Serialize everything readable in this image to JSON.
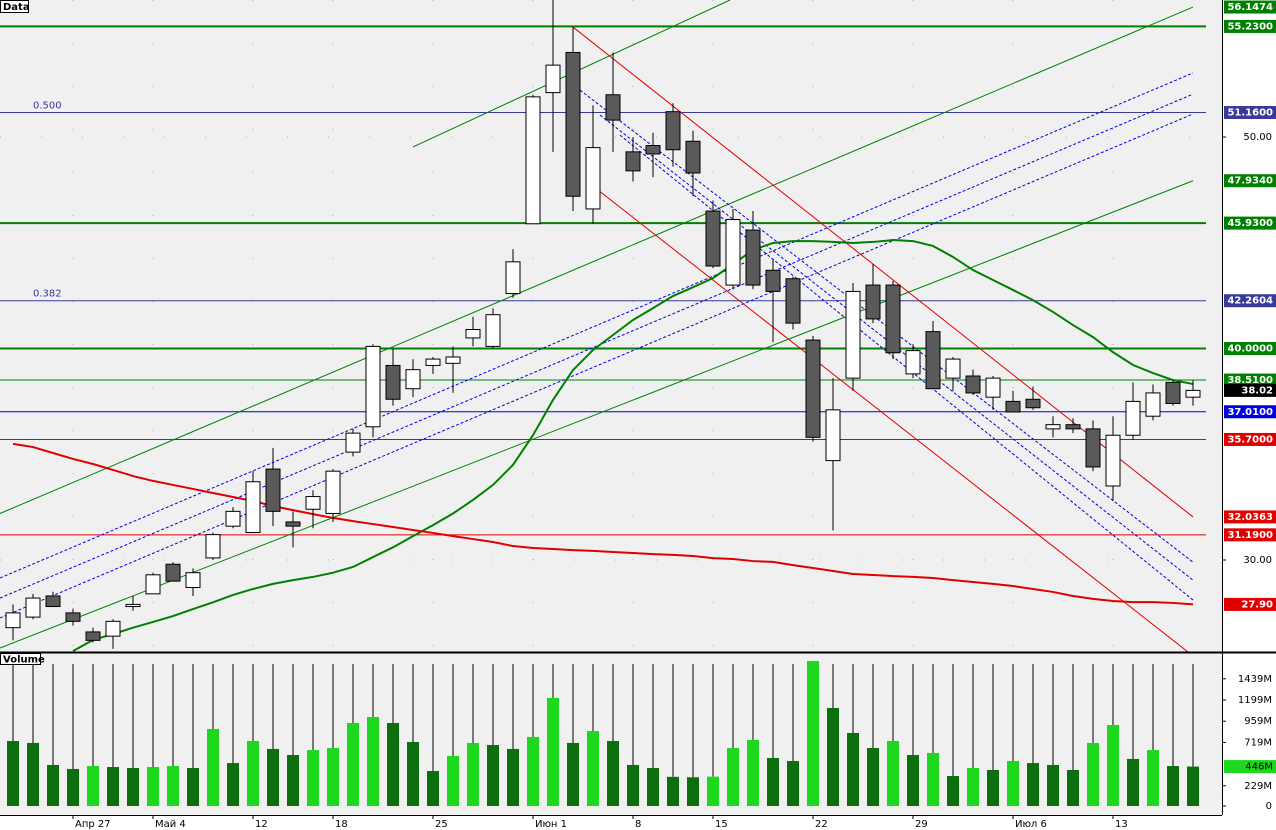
{
  "chart_data": [
    {
      "type": "candlestick",
      "title": "Data",
      "open": [
        26.8,
        27.3,
        28.3,
        27.5,
        26.6,
        26.4,
        27.8,
        28.4,
        29.8,
        28.7,
        30.1,
        31.6,
        31.3,
        34.3,
        31.8,
        32.4,
        32.2,
        35.1,
        36.3,
        39.2,
        38.1,
        39.2,
        39.3,
        40.5,
        40.1,
        42.6,
        45.9,
        52.1,
        54.0,
        46.6,
        52.0,
        49.3,
        49.6,
        51.2,
        49.8,
        46.5,
        43.0,
        45.6,
        43.7,
        43.3,
        40.4,
        34.7,
        38.6,
        43.0,
        43.0,
        38.8,
        40.8,
        38.6,
        38.7,
        37.7,
        37.5,
        37.6,
        36.2,
        36.4,
        36.2,
        33.5,
        35.9,
        36.8,
        38.4,
        37.7
      ],
      "high": [
        27.9,
        28.4,
        28.5,
        27.7,
        26.8,
        27.2,
        28.3,
        29.4,
        29.9,
        29.6,
        31.3,
        32.5,
        34.2,
        35.3,
        32.3,
        33.3,
        34.3,
        36.2,
        40.2,
        40.0,
        39.5,
        39.6,
        40.1,
        41.5,
        41.9,
        44.7,
        52.0,
        56.5,
        55.2,
        51.5,
        54.0,
        50.0,
        50.2,
        51.6,
        50.3,
        47.0,
        46.6,
        46.5,
        44.2,
        43.4,
        40.6,
        38.6,
        43.1,
        44.0,
        43.2,
        40.2,
        41.3,
        39.6,
        39.0,
        38.7,
        38.0,
        38.2,
        36.8,
        36.7,
        36.6,
        36.8,
        38.4,
        38.3,
        38.5,
        38.5
      ],
      "low": [
        26.2,
        27.2,
        27.8,
        26.9,
        26.1,
        25.8,
        27.6,
        28.4,
        29.0,
        28.3,
        30.0,
        31.5,
        31.3,
        31.6,
        30.6,
        31.5,
        31.8,
        34.9,
        35.8,
        37.3,
        37.7,
        38.8,
        37.9,
        40.1,
        40.0,
        42.4,
        45.9,
        49.3,
        46.5,
        45.9,
        49.3,
        47.9,
        48.1,
        48.6,
        47.2,
        43.8,
        42.8,
        42.8,
        40.3,
        40.9,
        35.6,
        31.4,
        38.0,
        41.2,
        39.5,
        38.6,
        38.1,
        38.0,
        37.8,
        37.1,
        37.0,
        37.1,
        35.8,
        36.0,
        34.2,
        32.8,
        35.7,
        36.6,
        37.3,
        37.3
      ],
      "close": [
        27.5,
        28.2,
        27.8,
        27.1,
        26.2,
        27.1,
        27.9,
        29.3,
        29.0,
        29.4,
        31.2,
        32.3,
        33.7,
        32.3,
        31.6,
        33.0,
        34.2,
        36.0,
        40.1,
        37.6,
        39.0,
        39.5,
        39.6,
        40.9,
        41.6,
        44.1,
        51.9,
        53.4,
        47.2,
        49.5,
        50.8,
        48.4,
        49.2,
        49.4,
        48.3,
        43.9,
        46.1,
        43.0,
        42.7,
        41.2,
        35.8,
        37.1,
        42.7,
        41.4,
        39.8,
        39.9,
        38.1,
        39.5,
        37.9,
        38.6,
        37.0,
        37.2,
        36.4,
        36.2,
        34.4,
        35.9,
        37.5,
        37.9,
        37.4,
        38.02
      ],
      "last_label": "38.02",
      "up_color": "#ffffff",
      "down_color": "#5a5a5a",
      "ylim": [
        25.65,
        56.48
      ],
      "yticks": [
        {
          "value": 50,
          "label": "50.00"
        },
        {
          "value": 30,
          "label": "30.00"
        }
      ],
      "grid": true,
      "x_labels": [
        {
          "index": 3,
          "label": "Апр 27"
        },
        {
          "index": 7,
          "label": "Май 4"
        },
        {
          "index": 12,
          "label": "12"
        },
        {
          "index": 16,
          "label": "18"
        },
        {
          "index": 21,
          "label": "25"
        },
        {
          "index": 26,
          "label": "Июн 1"
        },
        {
          "index": 31,
          "label": "8"
        },
        {
          "index": 35,
          "label": "15"
        },
        {
          "index": 40,
          "label": "22"
        },
        {
          "index": 45,
          "label": "29"
        },
        {
          "index": 50,
          "label": "Июл 6"
        },
        {
          "index": 55,
          "label": "13"
        }
      ],
      "levels": [
        {
          "value": 55.23,
          "label": "55.2300",
          "color": "#008000",
          "style": "thick"
        },
        {
          "value": 51.16,
          "label": "51.1600",
          "color": "#3a3a9a",
          "style": "thin",
          "fib": "0.500"
        },
        {
          "value": 45.93,
          "label": "45.9300",
          "color": "#008000",
          "style": "thick"
        },
        {
          "value": 42.2604,
          "label": "42.2604",
          "color": "#3a3a9a",
          "style": "thin",
          "fib": "0.382"
        },
        {
          "value": 40.0,
          "label": "40.0000",
          "color": "#008000",
          "style": "thick"
        },
        {
          "value": 38.51,
          "label": "38.5100",
          "color": "#008000",
          "style": "thin"
        },
        {
          "value": 37.01,
          "label": "37.0100",
          "color": "#0000e0",
          "style": "thin"
        },
        {
          "value": 35.7,
          "label": "35.7000",
          "color": "#e00000",
          "style": "thin"
        },
        {
          "value": 31.19,
          "label": "31.1900",
          "color": "#e00000",
          "style": "thin"
        }
      ],
      "lines": [
        {
          "color": "#008000",
          "style": "solid",
          "points": [
            [
              20,
              49.53
            ],
            [
              35.85,
              56.48
            ]
          ]
        },
        {
          "color": "#008000",
          "style": "solid",
          "points": [
            [
              -0.65,
              32.2
            ],
            [
              59,
              56.1474
            ]
          ],
          "label": "56.1474"
        },
        {
          "color": "#008000",
          "style": "solid",
          "points": [
            [
              -0.65,
              25.84
            ],
            [
              59,
              47.934
            ]
          ],
          "label": "47.9340"
        },
        {
          "color": "#0000e0",
          "style": "dashed",
          "points": [
            [
              -0.65,
              29.15
            ],
            [
              59,
              53.03
            ]
          ]
        },
        {
          "color": "#0000e0",
          "style": "dashed",
          "points": [
            [
              -0.65,
              28.2
            ],
            [
              59,
              52.03
            ]
          ]
        },
        {
          "color": "#0000e0",
          "style": "dashed",
          "points": [
            [
              -0.65,
              27.26
            ],
            [
              59,
              51.09
            ]
          ]
        },
        {
          "color": "#e00000",
          "style": "solid",
          "points": [
            [
              28,
              55.2
            ],
            [
              59,
              32.0363
            ]
          ],
          "label": "32.0363"
        },
        {
          "color": "#e00000",
          "style": "solid",
          "points": [
            [
              29,
              47.68
            ],
            [
              58.75,
              25.65
            ]
          ]
        },
        {
          "color": "#0000e0",
          "style": "dashed",
          "points": [
            [
              28.35,
              52.22
            ],
            [
              59,
              29.9
            ]
          ]
        },
        {
          "color": "#0000e0",
          "style": "dashed",
          "points": [
            [
              29.35,
              51.04
            ],
            [
              59,
              29.05
            ]
          ]
        },
        {
          "color": "#0000e0",
          "style": "dashed",
          "points": [
            [
              30.35,
              50.09
            ],
            [
              59,
              28.11
            ]
          ]
        }
      ],
      "ma": [
        {
          "color": "#008000",
          "values": [
            null,
            null,
            null,
            25.7,
            26.22,
            26.5,
            26.8,
            27.07,
            27.35,
            27.68,
            28.0,
            28.35,
            28.63,
            28.87,
            29.05,
            29.2,
            29.4,
            29.67,
            30.14,
            30.6,
            31.13,
            31.65,
            32.2,
            32.84,
            33.55,
            34.5,
            35.9,
            37.57,
            38.98,
            39.93,
            40.64,
            41.35,
            41.91,
            42.48,
            42.9,
            43.33,
            43.99,
            44.66,
            44.99,
            45.08,
            45.08,
            45.04,
            44.99,
            45.04,
            45.13,
            45.08,
            44.85,
            44.33,
            43.71,
            43.24,
            42.77,
            42.29,
            41.73,
            41.11,
            40.54,
            39.83,
            39.22,
            38.84,
            38.51,
            38.32
          ]
        },
        {
          "color": "#e00000",
          "label": "27.90",
          "values": [
            35.49,
            35.34,
            35.06,
            34.78,
            34.54,
            34.26,
            33.97,
            33.74,
            33.55,
            33.36,
            33.17,
            32.98,
            32.79,
            32.55,
            32.36,
            32.17,
            31.99,
            31.84,
            31.7,
            31.56,
            31.42,
            31.28,
            31.13,
            30.99,
            30.85,
            30.66,
            30.57,
            30.52,
            30.47,
            30.43,
            30.38,
            30.33,
            30.28,
            30.24,
            30.19,
            30.09,
            30.05,
            29.95,
            29.91,
            29.76,
            29.62,
            29.48,
            29.34,
            29.29,
            29.24,
            29.2,
            29.15,
            29.05,
            28.96,
            28.87,
            28.77,
            28.63,
            28.49,
            28.3,
            28.16,
            28.06,
            28.01,
            28.01,
            27.97,
            27.9
          ]
        }
      ]
    },
    {
      "type": "bar",
      "title": "Volume",
      "values": [
        735,
        713,
        464,
        419,
        452,
        441,
        430,
        441,
        452,
        430,
        871,
        486,
        735,
        645,
        577,
        633,
        656,
        939,
        1007,
        939,
        724,
        396,
        566,
        713,
        690,
        645,
        781,
        1222,
        713,
        848,
        735,
        464,
        430,
        330,
        325,
        332,
        656,
        747,
        543,
        509,
        1640,
        1109,
        826,
        656,
        735,
        577,
        600,
        339,
        430,
        407,
        509,
        486,
        464,
        407,
        713,
        916,
        532,
        633,
        452,
        446
      ],
      "up_color": "#1ed81e",
      "down_color": "#0c6e0c",
      "ylim": [
        0,
        1742
      ],
      "yticks": [
        0,
        {
          "value": 229,
          "label": "229M"
        },
        {
          "value": 719,
          "label": "719M"
        },
        {
          "value": 959,
          "label": "959M"
        },
        {
          "value": 1199,
          "label": "1199M"
        },
        {
          "value": 1439,
          "label": "1439M"
        }
      ],
      "current": {
        "value": 446,
        "label": "446M"
      }
    }
  ]
}
